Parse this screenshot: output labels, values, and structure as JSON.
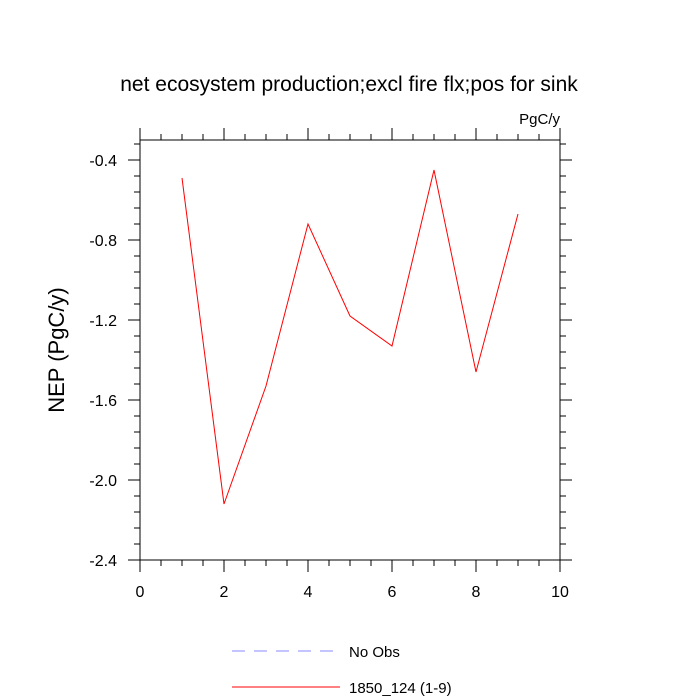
{
  "chart_data": {
    "type": "line",
    "title": "net ecosystem production;excl fire flx;pos for sink",
    "units_label": "PgC/y",
    "xlabel": "",
    "ylabel": "NEP  (PgC/y)",
    "xlim": [
      0,
      10
    ],
    "ylim": [
      -2.4,
      -0.3
    ],
    "x_ticks": [
      0,
      2,
      4,
      6,
      8,
      10
    ],
    "x_tick_labels": [
      "0",
      "2",
      "4",
      "6",
      "8",
      "10"
    ],
    "y_ticks": [
      -2.4,
      -2.0,
      -1.6,
      -1.2,
      -0.8,
      -0.4
    ],
    "y_tick_labels": [
      "-2.4",
      "-2.0",
      "-1.6",
      "-1.2",
      "-0.8",
      "-0.4"
    ],
    "grid": false,
    "series": [
      {
        "name": "1850_124 (1-9)",
        "color": "#ff0000",
        "style": "solid",
        "x": [
          1,
          2,
          3,
          4,
          5,
          6,
          7,
          8,
          9
        ],
        "values": [
          -0.49,
          -2.12,
          -1.53,
          -0.72,
          -1.18,
          -1.33,
          -0.45,
          -1.46,
          -0.67
        ]
      }
    ],
    "legend": [
      {
        "label": "No Obs",
        "color": "#8a8aff",
        "style": "dashed"
      },
      {
        "label": "1850_124 (1-9)",
        "color": "#ff0000",
        "style": "solid"
      }
    ],
    "legend_position": "bottom-center"
  }
}
